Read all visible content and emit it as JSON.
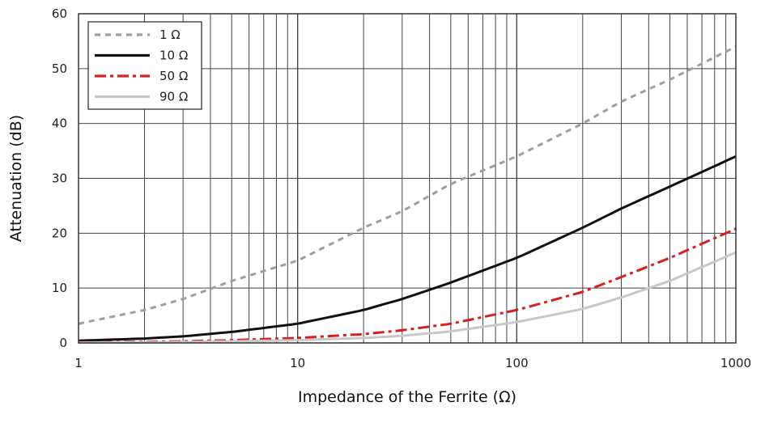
{
  "chart_data": {
    "type": "line",
    "xlabel": "Impedance of the Ferrite (Ω)",
    "ylabel": "Attenuation (dB)",
    "xscale": "log",
    "xlim": [
      1,
      1000
    ],
    "ylim": [
      0,
      60
    ],
    "xticks": [
      1,
      10,
      100,
      1000
    ],
    "xtick_labels": [
      "1",
      "10",
      "100",
      "1000"
    ],
    "yticks": [
      0,
      10,
      20,
      30,
      40,
      50,
      60
    ],
    "ytick_labels": [
      "0",
      "10",
      "20",
      "30",
      "40",
      "50",
      "60"
    ],
    "grid": true,
    "legend_position": "top-left",
    "series": [
      {
        "name": "1 Ω",
        "color": "#9e9e9e",
        "style": "dashed",
        "x": [
          1,
          2,
          3,
          5,
          10,
          20,
          30,
          50,
          100,
          200,
          300,
          500,
          1000
        ],
        "y": [
          3.5,
          6.0,
          8.0,
          11.3,
          15.0,
          21.0,
          24.0,
          29.0,
          34.0,
          40.0,
          44.0,
          48.0,
          54.0
        ]
      },
      {
        "name": "10 Ω",
        "color": "#111111",
        "style": "solid",
        "x": [
          1,
          2,
          3,
          5,
          10,
          20,
          30,
          50,
          100,
          200,
          300,
          500,
          1000
        ],
        "y": [
          0.4,
          0.8,
          1.2,
          2.0,
          3.5,
          6.0,
          8.0,
          11.0,
          15.5,
          21.0,
          24.5,
          28.5,
          34.0
        ]
      },
      {
        "name": "50 Ω",
        "color": "#d32020",
        "style": "dashdot",
        "x": [
          1,
          2,
          3,
          5,
          10,
          20,
          30,
          50,
          100,
          200,
          300,
          500,
          1000
        ],
        "y": [
          0.1,
          0.2,
          0.3,
          0.5,
          0.9,
          1.6,
          2.3,
          3.5,
          6.0,
          9.3,
          12.0,
          15.5,
          20.8
        ]
      },
      {
        "name": "90 Ω",
        "color": "#c8c8c8",
        "style": "solid",
        "x": [
          1,
          2,
          3,
          5,
          10,
          20,
          30,
          50,
          100,
          200,
          300,
          500,
          1000
        ],
        "y": [
          0.05,
          0.1,
          0.15,
          0.3,
          0.5,
          0.9,
          1.3,
          2.1,
          3.8,
          6.2,
          8.3,
          11.3,
          16.5
        ]
      }
    ]
  }
}
